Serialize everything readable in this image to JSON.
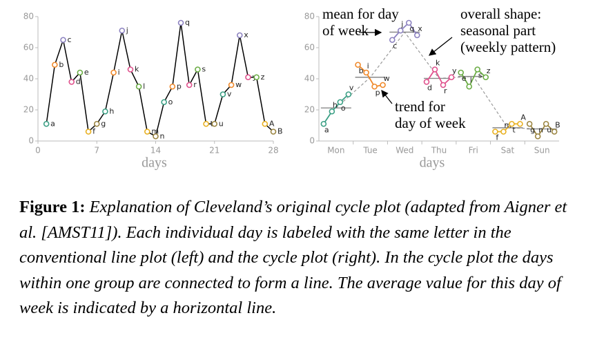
{
  "chart_data": [
    {
      "type": "line",
      "xlabel": "days",
      "x": [
        1,
        2,
        3,
        4,
        5,
        6,
        7,
        8,
        9,
        10,
        11,
        12,
        13,
        14,
        15,
        16,
        17,
        18,
        19,
        20,
        21,
        22,
        23,
        24,
        25,
        26,
        27,
        28
      ],
      "values": [
        11,
        49,
        65,
        38,
        44,
        6,
        11,
        19,
        44,
        71,
        46,
        35,
        6,
        3,
        25,
        35,
        76,
        36,
        46,
        11,
        11,
        30,
        36,
        68,
        41,
        41,
        11,
        6
      ],
      "point_labels": [
        "a",
        "b",
        "c",
        "d",
        "e",
        "f",
        "g",
        "h",
        "i",
        "j",
        "k",
        "l",
        "m",
        "n",
        "o",
        "p",
        "q",
        "r",
        "s",
        "t",
        "u",
        "v",
        "w",
        "x",
        "y",
        "z",
        "A",
        "B"
      ],
      "point_colors": [
        "#3a9f84",
        "#f0892a",
        "#8c82c0",
        "#e0508c",
        "#6aac44",
        "#e8b020",
        "#9a8440",
        "#3a9f84",
        "#f0892a",
        "#8c82c0",
        "#e0508c",
        "#6aac44",
        "#e8b020",
        "#9a8440",
        "#3a9f84",
        "#f0892a",
        "#8c82c0",
        "#e0508c",
        "#6aac44",
        "#e8b020",
        "#9a8440",
        "#3a9f84",
        "#f0892a",
        "#8c82c0",
        "#e0508c",
        "#6aac44",
        "#e8b020",
        "#9a8440"
      ],
      "line_color": "#000000",
      "xlim": [
        0,
        28
      ],
      "xticks": [
        0,
        7,
        14,
        21,
        28
      ],
      "ylim": [
        0,
        80
      ],
      "yticks": [
        0,
        20,
        40,
        60,
        80
      ]
    },
    {
      "type": "cycle",
      "xlabel": "days",
      "categories": [
        "Mon",
        "Tue",
        "Wed",
        "Thu",
        "Fri",
        "Sat",
        "Sun"
      ],
      "groups": [
        {
          "color": "#3a9f84",
          "labels": [
            "a",
            "h",
            "o",
            "v"
          ],
          "values": [
            11,
            19,
            25,
            30
          ],
          "mean": 21.25
        },
        {
          "color": "#f0892a",
          "labels": [
            "b",
            "i",
            "p",
            "w"
          ],
          "values": [
            49,
            44,
            35,
            36
          ],
          "mean": 41
        },
        {
          "color": "#8c82c0",
          "labels": [
            "c",
            "j",
            "q",
            "x"
          ],
          "values": [
            65,
            71,
            76,
            68
          ],
          "mean": 70
        },
        {
          "color": "#e0508c",
          "labels": [
            "d",
            "k",
            "r",
            "y"
          ],
          "values": [
            38,
            46,
            36,
            41
          ],
          "mean": 40.25
        },
        {
          "color": "#6aac44",
          "labels": [
            "e",
            "l",
            "s",
            "z"
          ],
          "values": [
            44,
            35,
            46,
            41
          ],
          "mean": 41.5
        },
        {
          "color": "#e8b020",
          "labels": [
            "f",
            "m",
            "t",
            "A"
          ],
          "values": [
            6,
            6,
            11,
            11
          ],
          "mean": 8.5
        },
        {
          "color": "#9a8440",
          "labels": [
            "g",
            "n",
            "u",
            "B"
          ],
          "values": [
            11,
            3,
            11,
            6
          ],
          "mean": 7.75
        }
      ],
      "ylim": [
        0,
        80
      ],
      "yticks": [
        0,
        20,
        40,
        60,
        80
      ],
      "annotations": [
        {
          "lines": [
            "mean for day",
            "of week"
          ]
        },
        {
          "lines": [
            "overall shape:",
            "seasonal part",
            "(weekly pattern)"
          ]
        },
        {
          "lines": [
            "trend for",
            "day of week"
          ]
        }
      ]
    }
  ],
  "caption": {
    "label": "Figure 1:",
    "text": "Explanation of Cleveland’s original cycle plot (adapted from Aigner et al. [AMST11]). Each individual day is labeled with the same letter in the conventional line plot (left) and the cycle plot (right). In the cycle plot the days within one group are connected to form a line. The average value for this day of week is indicated by a horizontal line."
  }
}
